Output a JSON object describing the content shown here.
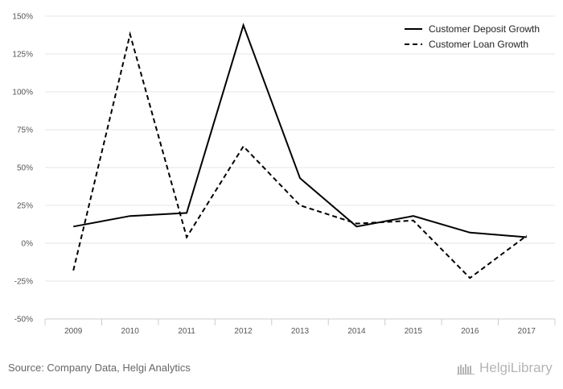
{
  "chart_data": {
    "type": "line",
    "title": "",
    "xlabel": "",
    "ylabel": "",
    "categories": [
      "2009",
      "2010",
      "2011",
      "2012",
      "2013",
      "2014",
      "2015",
      "2016",
      "2017"
    ],
    "ylim": [
      -50,
      150
    ],
    "yticks": [
      150,
      125,
      100,
      75,
      50,
      25,
      0,
      -25,
      -50
    ],
    "ytick_labels": [
      "150%",
      "125%",
      "100%",
      "75%",
      "50%",
      "25%",
      "0%",
      "-25%",
      "-50%"
    ],
    "grid": true,
    "legend_position": "top-right",
    "series": [
      {
        "name": "Customer Deposit Growth",
        "style": "solid",
        "color": "#000000",
        "values": [
          11,
          18,
          20,
          144,
          43,
          11,
          18,
          7,
          4
        ]
      },
      {
        "name": "Customer Loan Growth",
        "style": "dashed",
        "color": "#000000",
        "values": [
          -18,
          138,
          4,
          64,
          25,
          13,
          15,
          -23,
          5
        ]
      }
    ]
  },
  "footer": {
    "source": "Source: Company Data, Helgi Analytics",
    "brand": "HelgiLibrary"
  }
}
